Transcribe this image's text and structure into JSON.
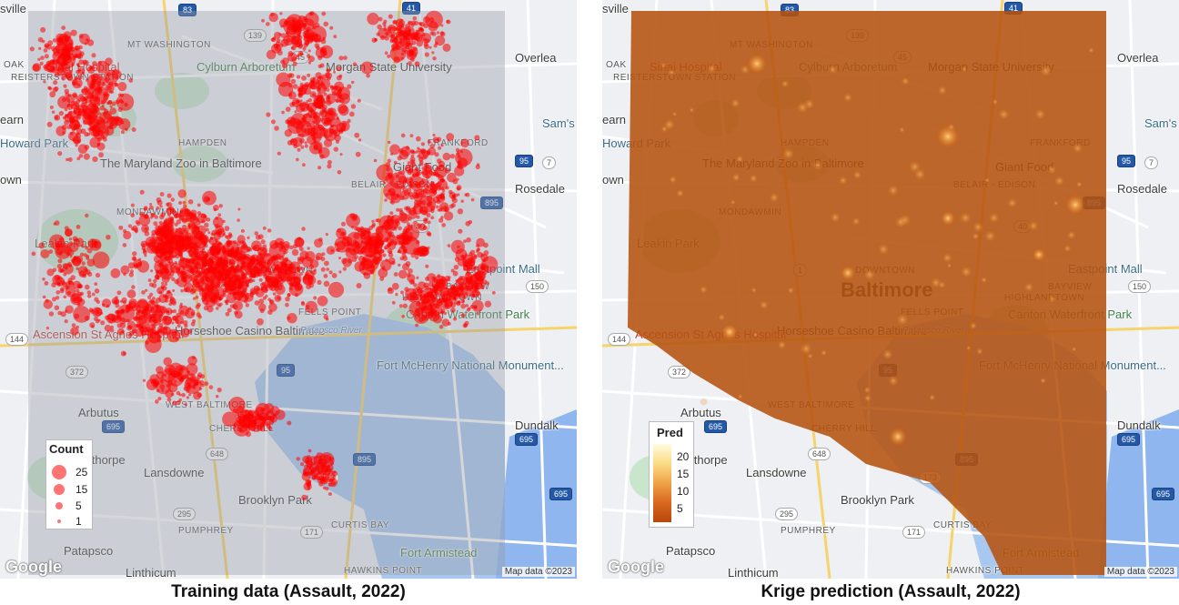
{
  "panels": {
    "left": {
      "caption": "Training data (Assault, 2022)",
      "legend": {
        "title": "Count",
        "entries": [
          "25",
          "15",
          "5",
          "1"
        ]
      },
      "logo": "Google",
      "attribution": "Map data ©2023",
      "point_color": "#ff0000"
    },
    "right": {
      "caption": "Krige prediction (Assault, 2022)",
      "legend": {
        "title": "Pred",
        "ticks": [
          "20",
          "15",
          "10",
          "5"
        ],
        "colors": [
          "#fffbe0",
          "#fbdc86",
          "#efa347",
          "#d9681f",
          "#b8470a"
        ]
      },
      "logo": "Google",
      "attribution": "Map data ©2023",
      "surface_color": "#b5520f"
    }
  },
  "map_labels": {
    "mt_washington": "MT WASHINGTON",
    "sinai": "Sinai Hospital",
    "cylburn": "Cylburn Arboretum",
    "morgan": "Morgan State University",
    "overlea": "Overlea",
    "sams": "Sam's",
    "oak": "OAK",
    "reisterstown": "REISTERSTOWN STATION",
    "earn": "earn",
    "howard_park": "Howard Park",
    "hampden": "HAMPDEN",
    "frankford": "FRANKFORD",
    "zoo": "The Maryland Zoo in Baltimore",
    "giant_food": "Giant Food",
    "rosedale": "Rosedale",
    "own": "own",
    "belair": "BELAIR - EDISON",
    "mondawmin": "MONDAWMIN",
    "leakin": "Leakin Park",
    "eastpoint": "Eastpoint Mall",
    "downtown": "DOWNTOWN",
    "baltimore": "Baltimore",
    "bayview": "BAYVIEW",
    "highlandtown": "HIGHLANDTOWN",
    "fells": "FELLS POINT",
    "canton": "Canton Waterfront Park",
    "ascension": "Ascension St Agnes Hospital",
    "horseshoe": "Horseshoe Casino Baltimore",
    "patapsco_river": "Patapsco River",
    "ft_mchenry": "Fort McHenry National Monument...",
    "arbutus": "Arbutus",
    "west_baltimore": "WEST BALTIMORE",
    "cherry_hill": "CHERRY HILL",
    "dundalk": "Dundalk",
    "halethorpe": "Halethorpe",
    "lansdowne": "Lansdowne",
    "brooklyn_park": "Brooklyn Park",
    "pumphrey": "PUMPHREY",
    "curtis_bay": "CURTIS BAY",
    "patapsco": "Patapsco",
    "linthicum": "Linthicum",
    "hawkins": "HAWKINS POINT",
    "ft_armistead": "Fort Armistead",
    "sville": "sville"
  },
  "shields": {
    "i83": "83",
    "i41": "41",
    "r139": "139",
    "r45": "45",
    "r7": "7",
    "i95a": "95",
    "i895": "895",
    "r40": "40",
    "r1": "1",
    "r150": "150",
    "r144": "144",
    "r372": "372",
    "i695a": "695",
    "i695b": "695",
    "r648": "648",
    "r166": "166",
    "i895b": "895",
    "r295": "295",
    "r171": "171",
    "r173": "173",
    "i95b": "95",
    "i695c": "695"
  }
}
